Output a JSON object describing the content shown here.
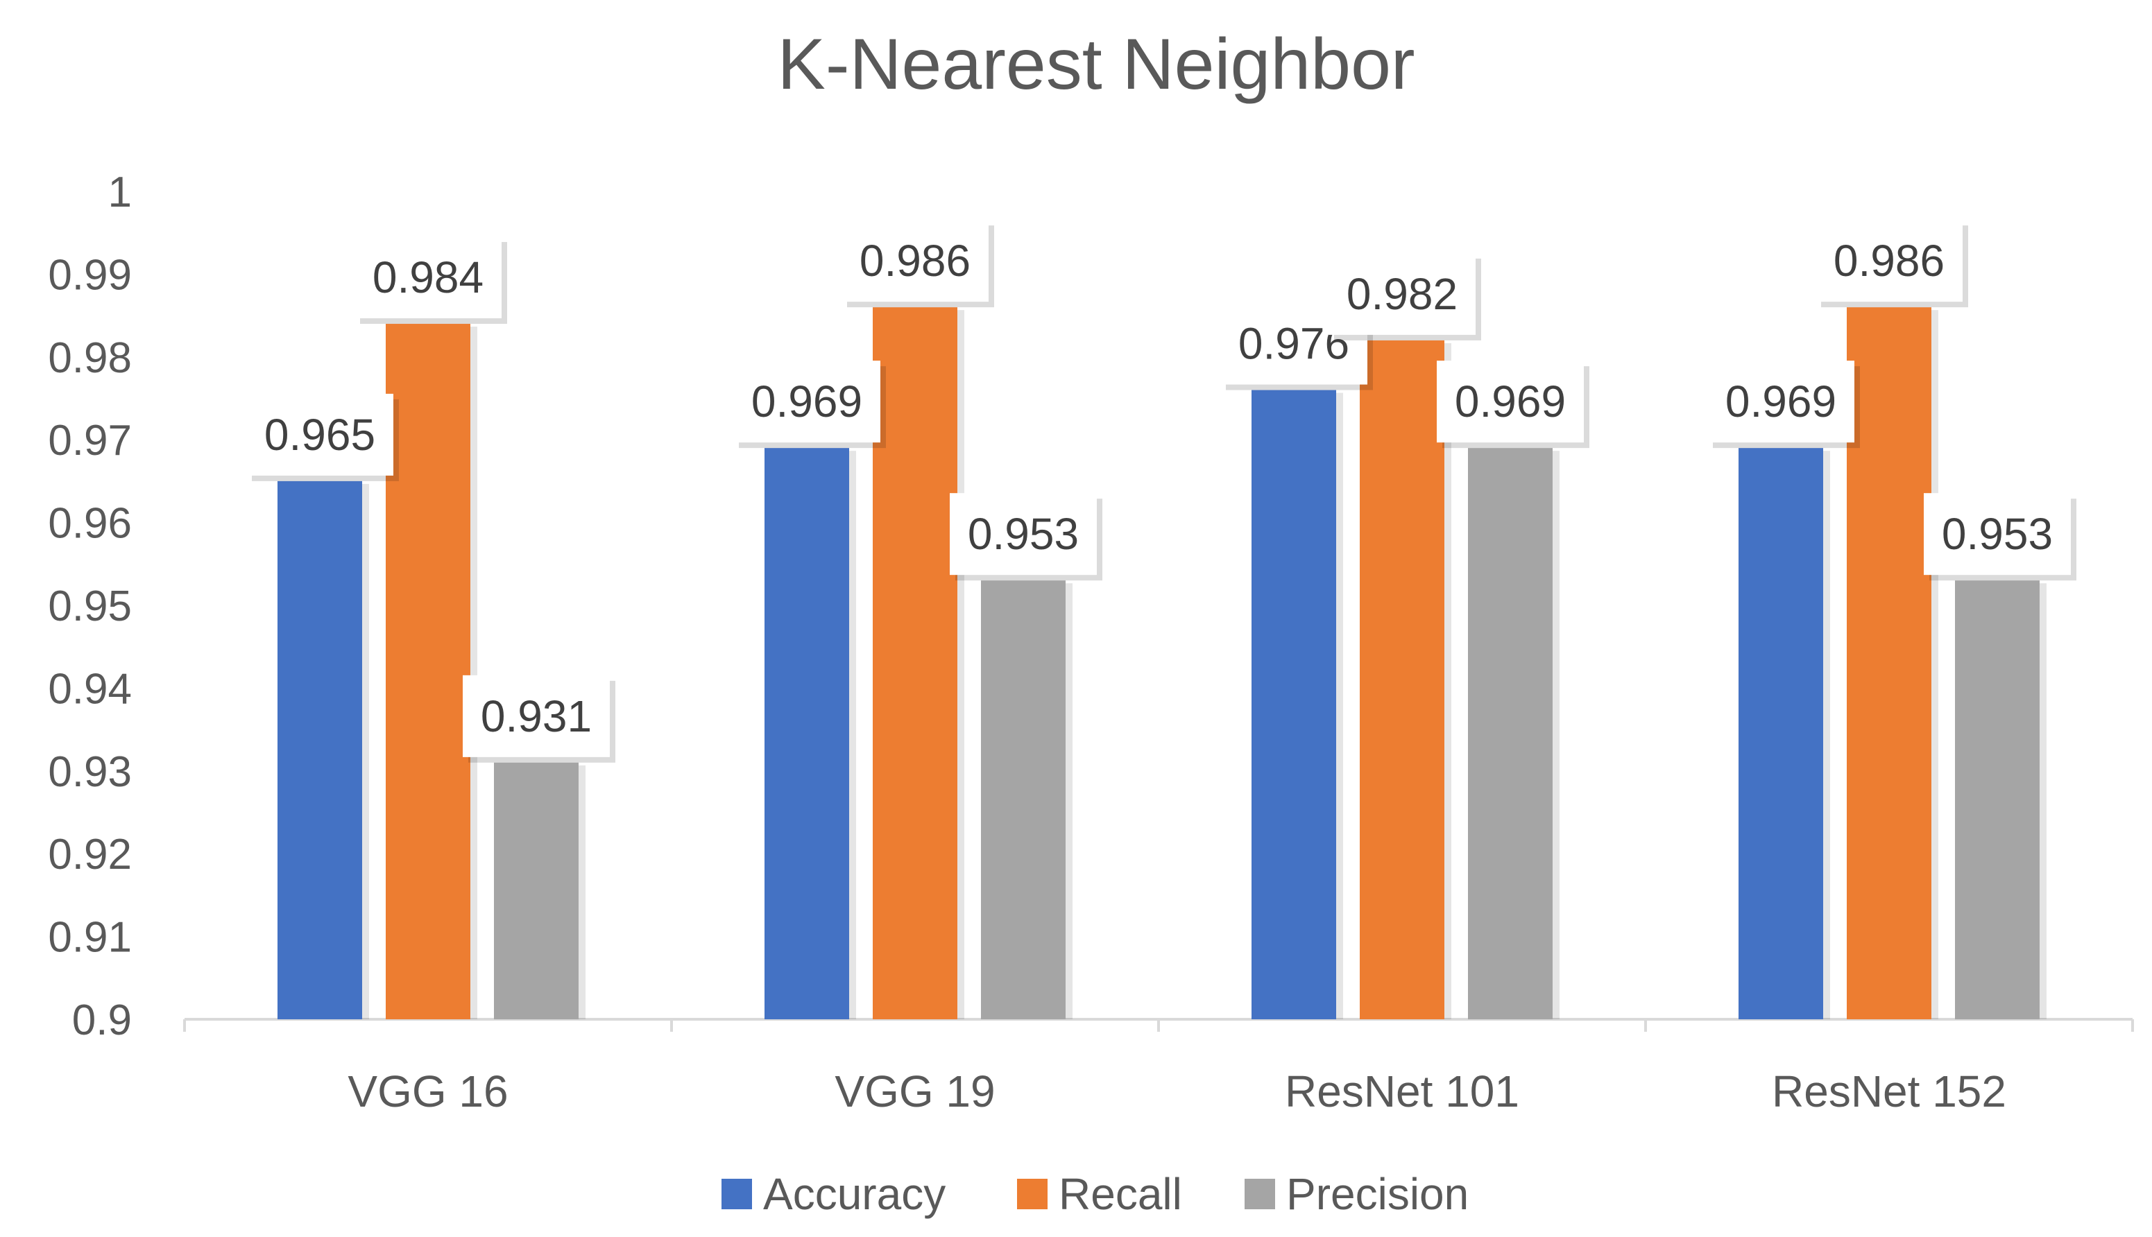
{
  "chart_data": {
    "type": "bar",
    "title": "K-Nearest Neighbor",
    "xlabel": "",
    "ylabel": "",
    "categories": [
      "VGG 16",
      "VGG 19",
      "ResNet 101",
      "ResNet 152"
    ],
    "series": [
      {
        "name": "Accuracy",
        "color": "#4472C4",
        "values": [
          0.965,
          0.969,
          0.976,
          0.969
        ],
        "labels": [
          "0.965",
          "0.969",
          "0.976",
          "0.969"
        ]
      },
      {
        "name": "Recall",
        "color": "#ED7D31",
        "values": [
          0.984,
          0.986,
          0.982,
          0.986
        ],
        "labels": [
          "0.984",
          "0.986",
          "0.982",
          "0.986"
        ]
      },
      {
        "name": "Precision",
        "color": "#A5A5A5",
        "values": [
          0.931,
          0.953,
          0.969,
          0.953
        ],
        "labels": [
          "0.931",
          "0.953",
          "0.969",
          "0.953"
        ]
      }
    ],
    "ylim": [
      0.9,
      1
    ],
    "y_ticks": [
      0.9,
      0.91,
      0.92,
      0.93,
      0.94,
      0.95,
      0.96,
      0.97,
      0.98,
      0.99,
      1
    ],
    "y_tick_labels": [
      "0.9",
      "0.91",
      "0.92",
      "0.93",
      "0.94",
      "0.95",
      "0.96",
      "0.97",
      "0.98",
      "0.99",
      "1"
    ],
    "grid": false,
    "legend_position": "bottom",
    "axis_color": "#D9D9D9",
    "text_color": "#595959"
  }
}
